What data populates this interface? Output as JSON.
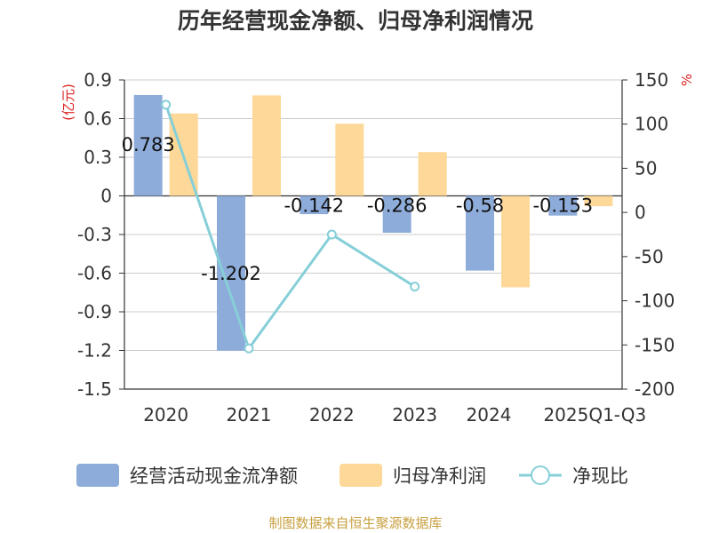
{
  "chart_data": {
    "type": "bar",
    "title": "历年经营现金净额、归母净利润情况",
    "categories": [
      "2020",
      "2021",
      "2022",
      "2023",
      "2024",
      "2025Q1-Q3"
    ],
    "series": [
      {
        "name": "经营活动现金流净额",
        "type": "bar",
        "axis": "left",
        "color": "#8eacda",
        "values": [
          0.783,
          -1.202,
          -0.142,
          -0.286,
          -0.58,
          -0.153
        ],
        "labels": [
          "0.783",
          "-1.202",
          "-0.142",
          "-0.286",
          "-0.58",
          "-0.153"
        ]
      },
      {
        "name": "归母净利润",
        "type": "bar",
        "axis": "left",
        "color": "#fdd898",
        "values": [
          0.64,
          0.78,
          0.56,
          0.34,
          -0.71,
          -0.08
        ]
      },
      {
        "name": "净现比",
        "type": "line",
        "axis": "right",
        "color": "#86cfd8",
        "values": [
          122,
          -154,
          -25,
          -84,
          null,
          null
        ]
      }
    ],
    "yleft": {
      "unit": "(亿元)",
      "min": -1.5,
      "max": 0.9,
      "ticks": [
        "0.9",
        "0.6",
        "0.3",
        "0",
        "-0.3",
        "-0.6",
        "-0.9",
        "-1.2",
        "-1.5"
      ]
    },
    "yright": {
      "unit": "%",
      "min": -200,
      "max": 150,
      "ticks": [
        "150",
        "100",
        "50",
        "0",
        "-50",
        "-100",
        "-150",
        "-200"
      ]
    },
    "legend": {
      "position": "bottom"
    }
  },
  "source": "制图数据来自恒生聚源数据库"
}
